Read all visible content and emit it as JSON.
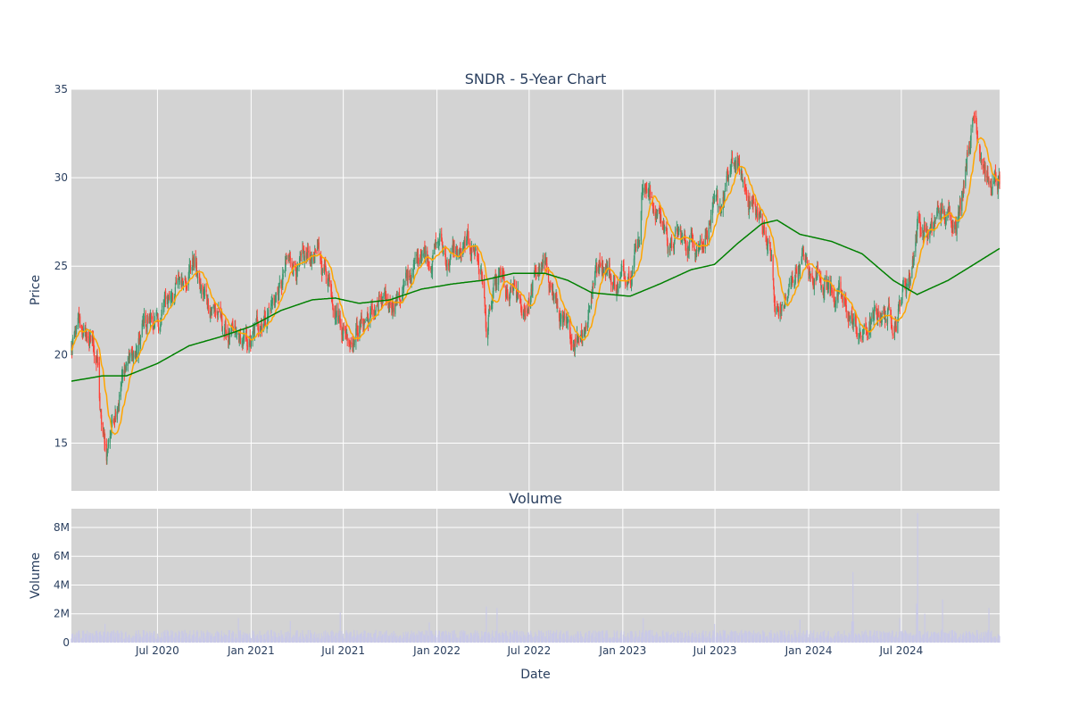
{
  "chart_data": [
    {
      "type": "candlestick",
      "title": "SNDR - 5-Year Chart",
      "ylabel": "Price",
      "xlabel": "",
      "ylim": [
        12.3,
        35.0
      ],
      "y_ticks": [
        15,
        20,
        25,
        30,
        35
      ],
      "x_range": [
        "2020-01-14",
        "2025-01-10"
      ],
      "grid": true,
      "series": [
        {
          "kind": "candles",
          "increasing_color": "#3d9970",
          "decreasing_color": "#ff4136"
        },
        {
          "kind": "line",
          "window": 20,
          "color": "#ffa500"
        },
        {
          "kind": "line",
          "window": 200,
          "color": "#008000"
        }
      ],
      "price_path": [
        [
          "2020-01-14",
          20.2
        ],
        [
          "2020-01-28",
          21.5
        ],
        [
          "2020-02-11",
          21.0
        ],
        [
          "2020-02-25",
          20.6
        ],
        [
          "2020-03-05",
          19.6
        ],
        [
          "2020-03-12",
          16.0
        ],
        [
          "2020-03-23",
          14.3
        ],
        [
          "2020-03-31",
          15.8
        ],
        [
          "2020-04-10",
          17.2
        ],
        [
          "2020-04-24",
          18.8
        ],
        [
          "2020-05-08",
          20.0
        ],
        [
          "2020-05-22",
          19.8
        ],
        [
          "2020-06-05",
          21.8
        ],
        [
          "2020-06-19",
          22.0
        ],
        [
          "2020-07-03",
          21.5
        ],
        [
          "2020-07-17",
          23.0
        ],
        [
          "2020-07-31",
          23.6
        ],
        [
          "2020-08-14",
          24.0
        ],
        [
          "2020-08-28",
          24.8
        ],
        [
          "2020-09-11",
          25.4
        ],
        [
          "2020-09-25",
          23.5
        ],
        [
          "2020-10-09",
          23.0
        ],
        [
          "2020-10-23",
          22.6
        ],
        [
          "2020-11-06",
          21.5
        ],
        [
          "2020-11-20",
          21.0
        ],
        [
          "2020-12-04",
          20.8
        ],
        [
          "2020-12-18",
          20.6
        ],
        [
          "2021-01-01",
          20.6
        ],
        [
          "2021-01-15",
          21.8
        ],
        [
          "2021-01-29",
          22.2
        ],
        [
          "2021-02-12",
          23.0
        ],
        [
          "2021-02-26",
          23.5
        ],
        [
          "2021-03-12",
          25.0
        ],
        [
          "2021-03-26",
          25.3
        ],
        [
          "2021-04-09",
          24.8
        ],
        [
          "2021-04-23",
          25.4
        ],
        [
          "2021-05-07",
          25.8
        ],
        [
          "2021-05-21",
          25.0
        ],
        [
          "2021-06-04",
          24.5
        ],
        [
          "2021-06-18",
          22.5
        ],
        [
          "2021-07-02",
          21.5
        ],
        [
          "2021-07-16",
          21.0
        ],
        [
          "2021-07-30",
          21.6
        ],
        [
          "2021-08-13",
          22.0
        ],
        [
          "2021-08-27",
          22.3
        ],
        [
          "2021-09-10",
          22.8
        ],
        [
          "2021-09-24",
          22.6
        ],
        [
          "2021-10-08",
          23.2
        ],
        [
          "2021-10-22",
          23.4
        ],
        [
          "2021-11-05",
          24.2
        ],
        [
          "2021-11-19",
          25.0
        ],
        [
          "2021-12-03",
          26.2
        ],
        [
          "2021-12-17",
          25.5
        ],
        [
          "2022-01-07",
          26.5
        ],
        [
          "2022-01-21",
          25.2
        ],
        [
          "2022-02-04",
          25.8
        ],
        [
          "2022-02-18",
          25.6
        ],
        [
          "2022-03-04",
          26.2
        ],
        [
          "2022-03-18",
          26.0
        ],
        [
          "2022-04-01",
          24.2
        ],
        [
          "2022-04-08",
          21.3
        ],
        [
          "2022-04-22",
          23.2
        ],
        [
          "2022-05-06",
          24.4
        ],
        [
          "2022-05-20",
          22.8
        ],
        [
          "2022-06-03",
          23.6
        ],
        [
          "2022-06-17",
          22.3
        ],
        [
          "2022-07-01",
          23.0
        ],
        [
          "2022-07-15",
          24.6
        ],
        [
          "2022-07-29",
          24.8
        ],
        [
          "2022-08-12",
          24.2
        ],
        [
          "2022-08-26",
          22.5
        ],
        [
          "2022-09-09",
          21.2
        ],
        [
          "2022-09-23",
          20.8
        ],
        [
          "2022-10-07",
          21.4
        ],
        [
          "2022-10-21",
          21.8
        ],
        [
          "2022-11-04",
          24.2
        ],
        [
          "2022-11-18",
          25.5
        ],
        [
          "2022-12-02",
          25.0
        ],
        [
          "2022-12-16",
          23.8
        ],
        [
          "2023-01-06",
          24.6
        ],
        [
          "2023-01-20",
          25.4
        ],
        [
          "2023-02-03",
          27.0
        ],
        [
          "2023-02-10",
          30.2
        ],
        [
          "2023-02-24",
          28.8
        ],
        [
          "2023-03-10",
          28.0
        ],
        [
          "2023-03-24",
          27.2
        ],
        [
          "2023-04-07",
          26.0
        ],
        [
          "2023-04-21",
          26.8
        ],
        [
          "2023-05-05",
          26.2
        ],
        [
          "2023-05-19",
          26.6
        ],
        [
          "2023-06-02",
          26.4
        ],
        [
          "2023-06-16",
          27.2
        ],
        [
          "2023-06-30",
          28.0
        ],
        [
          "2023-07-14",
          28.4
        ],
        [
          "2023-07-28",
          30.0
        ],
        [
          "2023-08-11",
          31.0
        ],
        [
          "2023-08-25",
          29.6
        ],
        [
          "2023-09-08",
          28.8
        ],
        [
          "2023-09-22",
          27.8
        ],
        [
          "2023-10-06",
          27.2
        ],
        [
          "2023-10-20",
          25.5
        ],
        [
          "2023-10-27",
          22.2
        ],
        [
          "2023-11-10",
          22.6
        ],
        [
          "2023-11-24",
          23.5
        ],
        [
          "2023-12-08",
          24.8
        ],
        [
          "2023-12-22",
          25.6
        ],
        [
          "2024-01-05",
          24.2
        ],
        [
          "2024-01-19",
          24.8
        ],
        [
          "2024-02-02",
          24.2
        ],
        [
          "2024-02-16",
          23.6
        ],
        [
          "2024-03-01",
          23.2
        ],
        [
          "2024-03-15",
          22.5
        ],
        [
          "2024-03-29",
          21.8
        ],
        [
          "2024-04-12",
          21.0
        ],
        [
          "2024-04-26",
          21.4
        ],
        [
          "2024-05-10",
          22.0
        ],
        [
          "2024-05-24",
          22.4
        ],
        [
          "2024-06-07",
          22.2
        ],
        [
          "2024-06-21",
          22.0
        ],
        [
          "2024-07-05",
          23.8
        ],
        [
          "2024-07-19",
          24.5
        ],
        [
          "2024-08-02",
          27.5
        ],
        [
          "2024-08-16",
          27.0
        ],
        [
          "2024-08-30",
          26.8
        ],
        [
          "2024-09-13",
          28.2
        ],
        [
          "2024-09-27",
          27.6
        ],
        [
          "2024-10-11",
          27.8
        ],
        [
          "2024-10-25",
          28.4
        ],
        [
          "2024-11-08",
          31.8
        ],
        [
          "2024-11-22",
          33.5
        ],
        [
          "2024-12-06",
          31.5
        ],
        [
          "2024-12-20",
          29.5
        ],
        [
          "2025-01-10",
          29.6
        ]
      ],
      "sma200_path": [
        [
          "2020-01-14",
          18.5
        ],
        [
          "2020-03-15",
          18.8
        ],
        [
          "2020-05-01",
          18.8
        ],
        [
          "2020-07-01",
          19.5
        ],
        [
          "2020-09-01",
          20.5
        ],
        [
          "2020-11-01",
          21.0
        ],
        [
          "2021-01-01",
          21.6
        ],
        [
          "2021-03-01",
          22.5
        ],
        [
          "2021-05-01",
          23.1
        ],
        [
          "2021-06-15",
          23.2
        ],
        [
          "2021-08-01",
          22.9
        ],
        [
          "2021-10-01",
          23.1
        ],
        [
          "2021-12-01",
          23.7
        ],
        [
          "2022-02-01",
          24.0
        ],
        [
          "2022-04-01",
          24.2
        ],
        [
          "2022-06-01",
          24.6
        ],
        [
          "2022-08-01",
          24.6
        ],
        [
          "2022-09-15",
          24.2
        ],
        [
          "2022-11-01",
          23.5
        ],
        [
          "2023-01-15",
          23.3
        ],
        [
          "2023-03-15",
          24.0
        ],
        [
          "2023-05-15",
          24.8
        ],
        [
          "2023-06-30",
          25.1
        ],
        [
          "2023-08-15",
          26.3
        ],
        [
          "2023-10-01",
          27.4
        ],
        [
          "2023-10-31",
          27.6
        ],
        [
          "2023-12-15",
          26.8
        ],
        [
          "2024-02-15",
          26.4
        ],
        [
          "2024-04-15",
          25.7
        ],
        [
          "2024-06-15",
          24.2
        ],
        [
          "2024-08-01",
          23.4
        ],
        [
          "2024-10-01",
          24.2
        ],
        [
          "2024-11-15",
          25.0
        ],
        [
          "2025-01-10",
          26.0
        ]
      ]
    },
    {
      "type": "bar",
      "title": "Volume",
      "ylabel": "Volume",
      "xlabel": "Date",
      "ylim": [
        0,
        9300000
      ],
      "y_ticks": [
        0,
        2000000,
        4000000,
        6000000,
        8000000
      ],
      "y_tick_labels": [
        "0",
        "2M",
        "4M",
        "6M",
        "8M"
      ],
      "x_ticks": [
        "2020-07-01",
        "2021-01-01",
        "2021-07-01",
        "2022-01-01",
        "2022-07-01",
        "2023-01-01",
        "2023-07-01",
        "2024-01-01",
        "2024-07-01"
      ],
      "x_tick_labels": [
        "Jul 2020",
        "Jan 2021",
        "Jul 2021",
        "Jan 2022",
        "Jul 2022",
        "Jan 2023",
        "Jul 2023",
        "Jan 2024",
        "Jul 2024"
      ],
      "bar_color": "#c8c8e8",
      "typical_volume": 650000,
      "volume_spikes": [
        [
          "2020-03-20",
          1300000
        ],
        [
          "2020-12-07",
          1700000
        ],
        [
          "2021-03-19",
          1500000
        ],
        [
          "2021-06-25",
          2100000
        ],
        [
          "2021-12-17",
          1400000
        ],
        [
          "2022-04-08",
          2500000
        ],
        [
          "2022-04-29",
          2400000
        ],
        [
          "2023-02-10",
          1700000
        ],
        [
          "2023-06-30",
          1300000
        ],
        [
          "2023-12-15",
          1600000
        ],
        [
          "2024-03-28",
          4900000
        ],
        [
          "2024-06-28",
          1700000
        ],
        [
          "2024-08-02",
          9000000
        ],
        [
          "2024-08-16",
          2000000
        ],
        [
          "2024-09-20",
          3000000
        ],
        [
          "2024-12-20",
          2400000
        ]
      ]
    }
  ],
  "colors": {
    "plot_bg": "#d3d3d3",
    "grid": "#ffffff",
    "text": "#2a3f5f"
  }
}
